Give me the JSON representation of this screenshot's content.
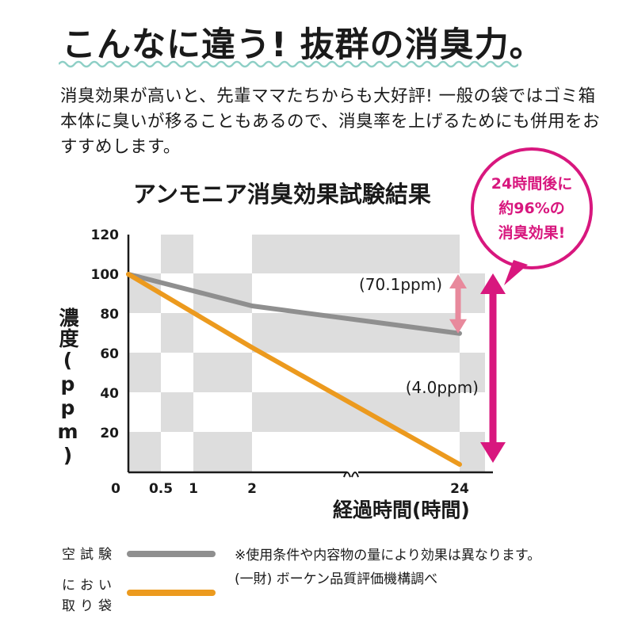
{
  "headline": "こんなに違う! 抜群の消臭力。",
  "intro": "消臭効果が高いと、先輩ママたちからも大好評! 一般の袋ではゴミ箱本体に臭いが移ることもあるので、消臭率を上げるためにも併用をおすすめします。",
  "callout": {
    "line1": "24時間後に",
    "line2": "約96%の",
    "line3": "消臭効果!",
    "color": "#d8177e"
  },
  "chart_data": {
    "type": "line",
    "title": "アンモニア消臭効果試験結果",
    "xlabel": "経過時間(時間)",
    "ylabel": "濃度(ppm)",
    "x_ticks": [
      "0",
      "0.5",
      "1",
      "2",
      "24"
    ],
    "y_ticks": [
      20,
      40,
      60,
      80,
      100,
      120
    ],
    "ylim": [
      0,
      120
    ],
    "x_axis_break": "between 2 and 24",
    "grid": "checkerboard background",
    "series": [
      {
        "name": "空試験",
        "color": "#8f8f8f",
        "x": [
          0,
          2,
          24
        ],
        "y": [
          100,
          84,
          70.1
        ]
      },
      {
        "name": "におい取り袋",
        "color": "#ec9a1e",
        "x": [
          0,
          2,
          24
        ],
        "y": [
          100,
          63,
          4.0
        ]
      }
    ],
    "annotations": [
      {
        "text": "(70.1ppm)",
        "series": "空試験"
      },
      {
        "text": "(4.0ppm)",
        "series": "におい取り袋"
      }
    ]
  },
  "legend": {
    "blank_label_1": "空試験",
    "bag_label_1": "におい",
    "bag_label_2": "取り袋"
  },
  "notes": {
    "line1": "※使用条件や内容物の量により効果は異なります。",
    "line2": "(一財) ボーケン品質評価機構調べ"
  },
  "colors": {
    "accent": "#d8177e",
    "accent_light": "#e8899c",
    "wave": "#8ecfc6",
    "checker": "#dddddd"
  }
}
